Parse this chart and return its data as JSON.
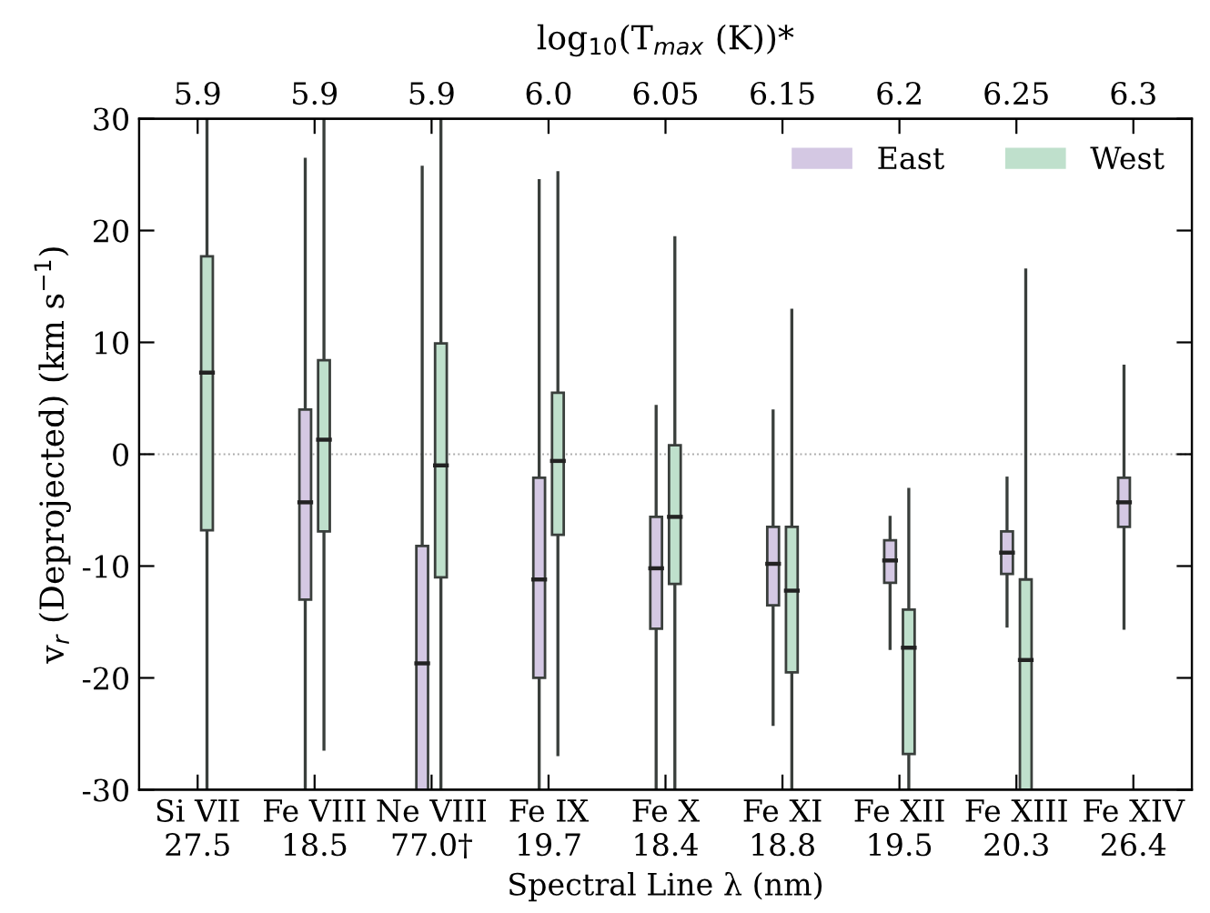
{
  "chart_data": {
    "type": "box",
    "xlabel": "Spectral Line λ (nm)",
    "ylabel": "v$_{r}$ (Deprojected) (km s$^{−1}$)",
    "x2label": "log$_{10}$(T$_{max}$ (K))*",
    "categories": [
      "Si VII\n27.5",
      "Fe VIII\n18.5",
      "Ne VIII\n77.0†",
      "Fe IX\n19.7",
      "Fe X\n18.4",
      "Fe XI\n18.8",
      "Fe XII\n19.5",
      "Fe XIII\n20.3",
      "Fe XIV\n26.4"
    ],
    "annotations": [
      "5.9",
      "5.9",
      "5.9",
      "6.0",
      "6.05",
      "6.15",
      "6.2",
      "6.25",
      "6.3"
    ],
    "ylim": [
      -30,
      30
    ],
    "yticks": [
      -30,
      -20,
      -10,
      0,
      10,
      20,
      30
    ],
    "series": [
      {
        "name": "East",
        "color": "#d4c8e3",
        "boxes": [
          null,
          {
            "low": -30,
            "q1": -13,
            "median": -4.3,
            "q3": 4,
            "high": 26.5
          },
          {
            "low": -30,
            "q1": -30,
            "median": -18.7,
            "q3": -8.2,
            "high": 25.8
          },
          {
            "low": -30,
            "q1": -20,
            "median": -11.2,
            "q3": -2.1,
            "high": 24.6
          },
          {
            "low": -30,
            "q1": -15.6,
            "median": -10.2,
            "q3": -5.6,
            "high": 4.4
          },
          {
            "low": -24.3,
            "q1": -13.5,
            "median": -9.8,
            "q3": -6.5,
            "high": 4
          },
          {
            "low": -17.5,
            "q1": -11.5,
            "median": -9.5,
            "q3": -7.7,
            "high": -5.5
          },
          {
            "low": -15.5,
            "q1": -10.7,
            "median": -8.8,
            "q3": -6.9,
            "high": -2
          },
          {
            "low": -15.7,
            "q1": -6.5,
            "median": -4.3,
            "q3": -2.1,
            "high": 8
          }
        ]
      },
      {
        "name": "West",
        "color": "#bfe0cc",
        "boxes": [
          {
            "low": -30,
            "q1": -6.8,
            "median": 7.3,
            "q3": 17.7,
            "high": 30
          },
          {
            "low": -26.5,
            "q1": -6.9,
            "median": 1.3,
            "q3": 8.4,
            "high": 30
          },
          {
            "low": -30,
            "q1": -11,
            "median": -1,
            "q3": 9.9,
            "high": 30
          },
          {
            "low": -27,
            "q1": -7.2,
            "median": -0.6,
            "q3": 5.5,
            "high": 25.3
          },
          {
            "low": -30,
            "q1": -11.6,
            "median": -5.6,
            "q3": 0.8,
            "high": 19.5
          },
          {
            "low": -30,
            "q1": -19.5,
            "median": -12.2,
            "q3": -6.5,
            "high": 13
          },
          {
            "low": -30,
            "q1": -26.8,
            "median": -17.3,
            "q3": -13.9,
            "high": -3
          },
          {
            "low": -30,
            "q1": -30,
            "median": -18.4,
            "q3": -11.2,
            "high": 16.6
          },
          null
        ]
      }
    ],
    "ref_lines": [
      {
        "axis": "y",
        "value": 0,
        "color": "#aaaaaa",
        "line_style": "dotted"
      }
    ],
    "legend": "top right",
    "grid": false
  }
}
